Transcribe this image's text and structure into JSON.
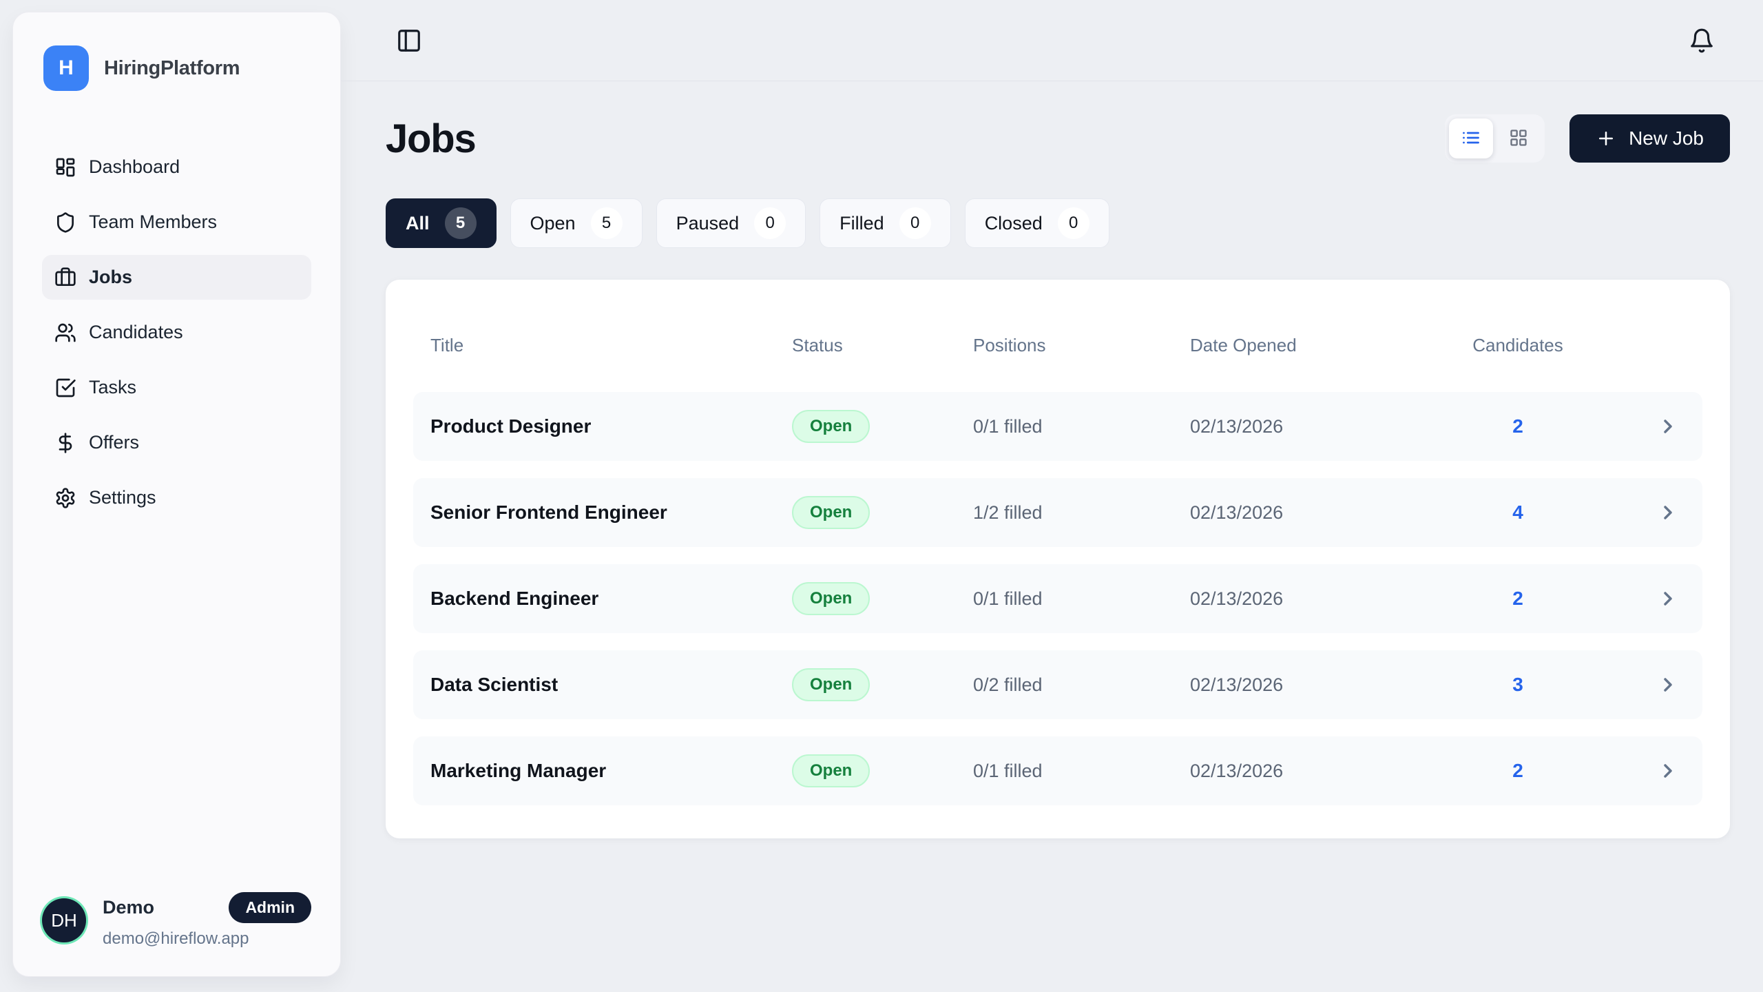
{
  "brand": {
    "name": "HiringPlatform",
    "logo_letter": "H"
  },
  "sidebar": {
    "items": [
      {
        "label": "Dashboard",
        "icon": "dashboard-icon",
        "active": false
      },
      {
        "label": "Team Members",
        "icon": "shield-icon",
        "active": false
      },
      {
        "label": "Jobs",
        "icon": "briefcase-icon",
        "active": true
      },
      {
        "label": "Candidates",
        "icon": "users-icon",
        "active": false
      },
      {
        "label": "Tasks",
        "icon": "check-square-icon",
        "active": false
      },
      {
        "label": "Offers",
        "icon": "dollar-icon",
        "active": false
      },
      {
        "label": "Settings",
        "icon": "gear-icon",
        "active": false
      }
    ],
    "user": {
      "initials": "DH",
      "name": "Demo",
      "role_badge": "Admin",
      "email": "demo@hireflow.app"
    }
  },
  "page": {
    "title": "Jobs",
    "new_job_label": "New Job",
    "filters": [
      {
        "label": "All",
        "count": "5",
        "active": true
      },
      {
        "label": "Open",
        "count": "5",
        "active": false
      },
      {
        "label": "Paused",
        "count": "0",
        "active": false
      },
      {
        "label": "Filled",
        "count": "0",
        "active": false
      },
      {
        "label": "Closed",
        "count": "0",
        "active": false
      }
    ],
    "table": {
      "columns": [
        "Title",
        "Status",
        "Positions",
        "Date Opened",
        "Candidates"
      ],
      "rows": [
        {
          "title": "Product Designer",
          "status": "Open",
          "positions": "0/1 filled",
          "date_opened": "02/13/2026",
          "candidates": "2"
        },
        {
          "title": "Senior Frontend Engineer",
          "status": "Open",
          "positions": "1/2 filled",
          "date_opened": "02/13/2026",
          "candidates": "4"
        },
        {
          "title": "Backend Engineer",
          "status": "Open",
          "positions": "0/1 filled",
          "date_opened": "02/13/2026",
          "candidates": "2"
        },
        {
          "title": "Data Scientist",
          "status": "Open",
          "positions": "0/2 filled",
          "date_opened": "02/13/2026",
          "candidates": "3"
        },
        {
          "title": "Marketing Manager",
          "status": "Open",
          "positions": "0/1 filled",
          "date_opened": "02/13/2026",
          "candidates": "2"
        }
      ]
    }
  },
  "colors": {
    "brand_blue": "#3b82f6",
    "link_blue": "#2563eb",
    "dark_navy": "#131d33",
    "open_badge_bg": "#dcfce7",
    "open_badge_text": "#15803d",
    "avatar_ring_green": "#6ee7b7",
    "page_background": "#edeff3"
  }
}
